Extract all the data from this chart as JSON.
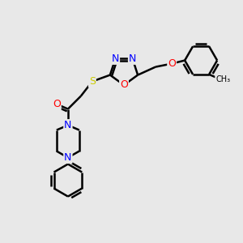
{
  "background_color": "#e8e8e8",
  "line_color": "black",
  "bond_width": 1.8,
  "atom_colors": {
    "N": "blue",
    "O": "red",
    "S": "#cccc00",
    "C": "black"
  },
  "font_size": 9,
  "figsize": [
    3.0,
    3.0
  ],
  "dpi": 100
}
